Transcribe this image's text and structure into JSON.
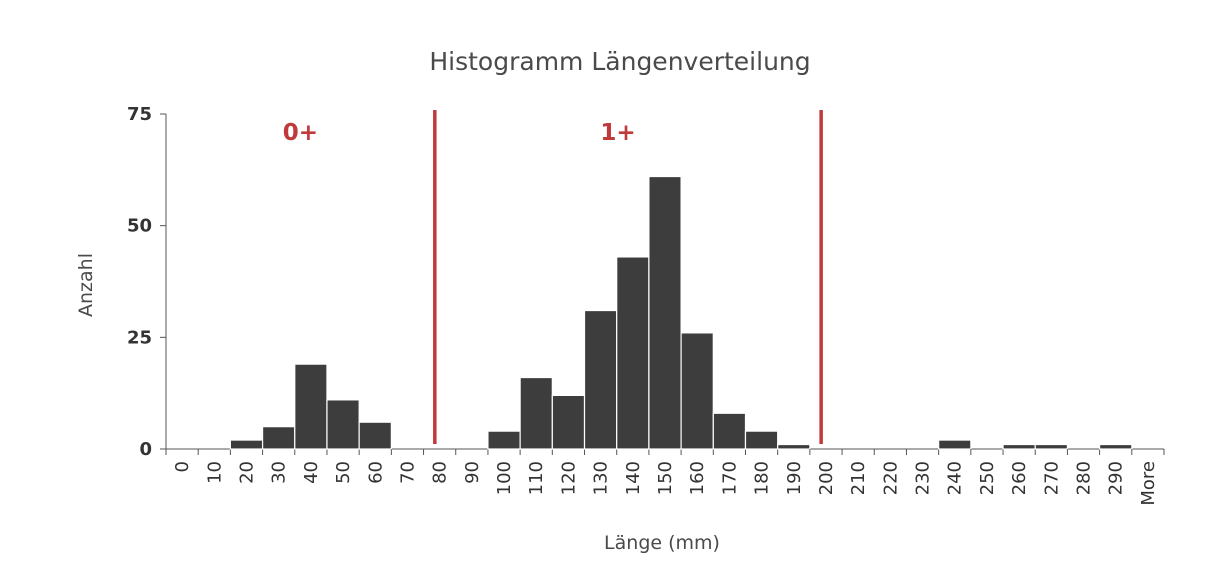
{
  "chart_data": {
    "type": "bar",
    "title": "Histogramm Längenverteilung",
    "xlabel": "Länge (mm)",
    "ylabel": "Anzahl",
    "ylim": [
      0,
      75
    ],
    "yticks": [
      "0",
      "25",
      "50",
      "75"
    ],
    "categories": [
      "0",
      "10",
      "20",
      "30",
      "40",
      "50",
      "60",
      "70",
      "80",
      "90",
      "100",
      "110",
      "120",
      "130",
      "140",
      "150",
      "160",
      "170",
      "180",
      "190",
      "200",
      "210",
      "220",
      "230",
      "240",
      "250",
      "260",
      "270",
      "280",
      "290",
      "More"
    ],
    "values": [
      0,
      0,
      2,
      5,
      19,
      11,
      6,
      0,
      0,
      0,
      4,
      16,
      12,
      31,
      43,
      61,
      26,
      8,
      4,
      1,
      0,
      0,
      0,
      0,
      2,
      0,
      1,
      1,
      0,
      1,
      0
    ],
    "bar_color": "#3d3d3d",
    "grid": false,
    "legend": "none",
    "annotations": [
      {
        "label": "0+",
        "color": "#c0393b"
      },
      {
        "label": "1+",
        "color": "#c0393b"
      }
    ],
    "reference_lines": [
      {
        "after_category": "70",
        "color": "#c0393b"
      },
      {
        "after_category": "190",
        "color": "#c0393b"
      }
    ]
  }
}
